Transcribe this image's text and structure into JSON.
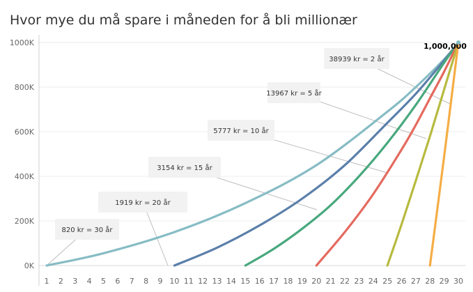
{
  "title": "Hvor mye du må spare i måneden for å bli millionær",
  "chart_data": {
    "type": "line",
    "title": "Hvor mye du må spare i måneden for å bli millionær",
    "xlabel": "",
    "ylabel": "",
    "x_ticks": [
      "1",
      "2",
      "3",
      "4",
      "5",
      "6",
      "7",
      "8",
      "9",
      "10",
      "11",
      "12",
      "13",
      "14",
      "15",
      "16",
      "17",
      "18",
      "19",
      "20",
      "21",
      "22",
      "23",
      "24",
      "25",
      "26",
      "27",
      "28",
      "29",
      "30"
    ],
    "y_ticks": [
      "0K",
      "200K",
      "400K",
      "600K",
      "800K",
      "1000K"
    ],
    "xlim": [
      1,
      30
    ],
    "ylim": [
      0,
      1000000
    ],
    "grid": "horizontal",
    "series": [
      {
        "annotation": "820 kr = 30 år",
        "color": "#86bcc4",
        "x": [
          1,
          5,
          10,
          15,
          20,
          25,
          27,
          29,
          30
        ],
        "y": [
          0,
          55000,
          150000,
          280000,
          450000,
          690000,
          800000,
          925000,
          1000000
        ]
      },
      {
        "annotation": "1919 kr = 20 år",
        "color": "#5b7faa",
        "x": [
          10,
          13,
          16,
          19,
          22,
          25,
          27,
          29,
          30
        ],
        "y": [
          0,
          80000,
          180000,
          300000,
          450000,
          640000,
          770000,
          920000,
          1000000
        ]
      },
      {
        "annotation": "3154 kr = 15 år",
        "color": "#48a87d",
        "x": [
          15,
          17,
          19,
          21,
          23,
          25,
          27,
          29,
          30
        ],
        "y": [
          0,
          75000,
          165000,
          270000,
          400000,
          550000,
          720000,
          910000,
          1000000
        ]
      },
      {
        "annotation": "5777 kr = 10 år",
        "color": "#e46a5e",
        "x": [
          20,
          22,
          24,
          26,
          27,
          28,
          29,
          30
        ],
        "y": [
          0,
          150000,
          320000,
          520000,
          630000,
          750000,
          870000,
          1000000
        ]
      },
      {
        "annotation": "13967 kr = 5 år",
        "color": "#b7ba3f",
        "x": [
          25,
          26,
          27,
          28,
          29,
          30
        ],
        "y": [
          0,
          185000,
          380000,
          580000,
          790000,
          1000000
        ]
      },
      {
        "annotation": "38939 kr = 2 år",
        "color": "#f5ad45",
        "x": [
          28,
          29,
          30
        ],
        "y": [
          0,
          490000,
          1000000
        ]
      }
    ],
    "peak_label": "1,000,000"
  }
}
